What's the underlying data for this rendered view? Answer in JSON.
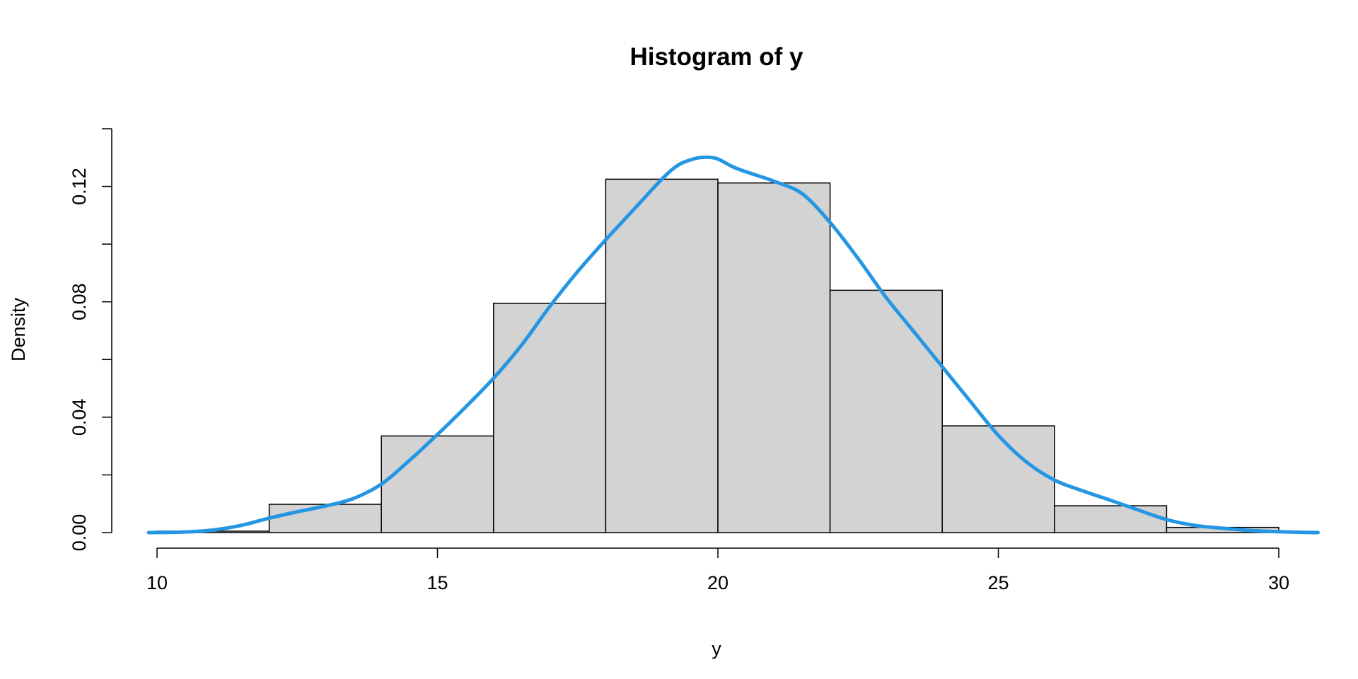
{
  "chart_data": {
    "type": "bar",
    "subtype": "histogram-with-density",
    "title": "Histogram of y",
    "xlabel": "y",
    "ylabel": "Density",
    "xlim": [
      10,
      30.7
    ],
    "ylim": [
      0,
      0.14
    ],
    "x_ticks": [
      10,
      15,
      20,
      25,
      30
    ],
    "x_tick_labels": [
      "10",
      "15",
      "20",
      "25",
      "30"
    ],
    "y_ticks": [
      0,
      0.02,
      0.04,
      0.06,
      0.08,
      0.1,
      0.12,
      0.14
    ],
    "y_tick_labels": [
      "0.00",
      "",
      "0.04",
      "",
      "0.08",
      "",
      "0.12",
      ""
    ],
    "grid": false,
    "bins": [
      {
        "from": 10,
        "to": 12,
        "density": 0.0005
      },
      {
        "from": 12,
        "to": 14,
        "density": 0.0098
      },
      {
        "from": 14,
        "to": 16,
        "density": 0.0335
      },
      {
        "from": 16,
        "to": 18,
        "density": 0.0795
      },
      {
        "from": 18,
        "to": 20,
        "density": 0.1225
      },
      {
        "from": 20,
        "to": 22,
        "density": 0.1212
      },
      {
        "from": 22,
        "to": 24,
        "density": 0.084
      },
      {
        "from": 24,
        "to": 26,
        "density": 0.037
      },
      {
        "from": 26,
        "to": 28,
        "density": 0.0093
      },
      {
        "from": 28,
        "to": 30,
        "density": 0.0018
      }
    ],
    "density_curve": {
      "x": [
        9.85,
        10.5,
        11,
        11.5,
        12,
        12.5,
        13,
        13.5,
        14,
        14.5,
        15,
        15.5,
        16,
        16.5,
        17,
        17.5,
        18,
        18.5,
        19,
        19.3,
        19.6,
        19.8,
        20,
        20.3,
        20.7,
        21,
        21.5,
        22,
        22.5,
        23,
        23.5,
        24,
        24.5,
        25,
        25.5,
        26,
        26.5,
        27,
        27.5,
        28,
        28.5,
        29,
        29.5,
        30,
        30.4,
        30.7
      ],
      "y": [
        0.0,
        0.0002,
        0.0009,
        0.0025,
        0.005,
        0.0072,
        0.0092,
        0.0118,
        0.0168,
        0.025,
        0.034,
        0.0435,
        0.0535,
        0.065,
        0.0783,
        0.0905,
        0.1015,
        0.112,
        0.1225,
        0.1275,
        0.1297,
        0.1301,
        0.1295,
        0.1265,
        0.1238,
        0.1218,
        0.1175,
        0.1075,
        0.095,
        0.0815,
        0.0695,
        0.0575,
        0.0455,
        0.0337,
        0.0245,
        0.0182,
        0.0145,
        0.0112,
        0.0078,
        0.0045,
        0.0025,
        0.0015,
        0.0007,
        0.0003,
        0.0001,
        0.0
      ],
      "color": "#2596e3"
    },
    "bar_fill": "#d3d3d3",
    "bar_stroke": "#000000"
  }
}
